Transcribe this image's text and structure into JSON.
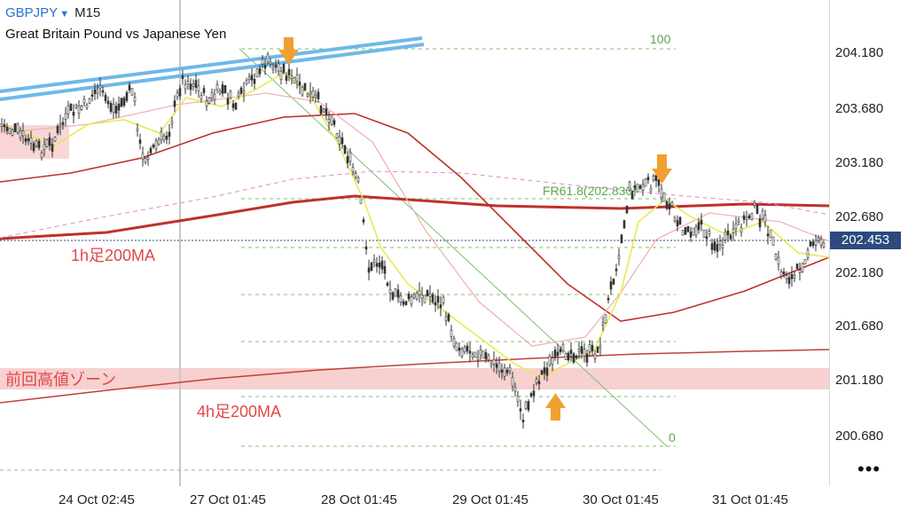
{
  "symbol": "GBPJPY",
  "timeframe": "M15",
  "description": "Great Britain Pound vs Japanese Yen",
  "current_price": "202.453",
  "price_axis": [
    "204.180",
    "203.680",
    "203.180",
    "202.680",
    "202.180",
    "201.680",
    "201.180",
    "200.680"
  ],
  "time_axis": [
    "24 Oct 02:45",
    "27 Oct 01:45",
    "28 Oct 01:45",
    "29 Oct 01:45",
    "30 Oct 01:45",
    "31 Oct 01:45"
  ],
  "annotations": {
    "ma_1h": "1h足200MA",
    "ma_4h": "4h足200MA",
    "prev_high_zone": "前回高値ゾーン"
  },
  "fibonacci": {
    "level_100": "100",
    "level_618": "FR61.8(202.830)",
    "level_0": "0"
  },
  "more_menu": "•••",
  "colors": {
    "candles": "#333333",
    "ma_fast": "#e8e84a",
    "ma_mid": "#f0b4b4",
    "ma_1h": "#c0302a",
    "ma_4h": "#c04038",
    "channel": "#6fb8e8",
    "zone": "#f6c8c8",
    "fib": "#5aa84a",
    "arrow": "#f0a030",
    "price_tag": "#2c4a7c"
  }
}
